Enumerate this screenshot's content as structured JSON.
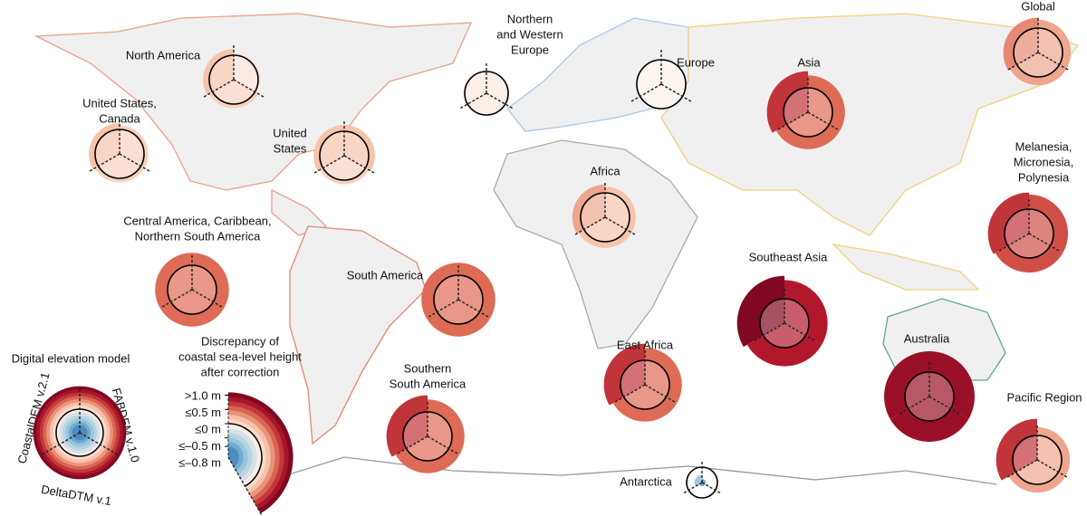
{
  "chart_data": {
    "type": "radial-glyph-map",
    "unit_note": null,
    "series": [
      {
        "name": "CoastalDEM v.2.1"
      },
      {
        "name": "FABDEM v.1.0"
      },
      {
        "name": "DeltaDTM v.1"
      }
    ],
    "legend_title": "Digital elevation model",
    "scale_title": [
      "Discrepancy of",
      "coastal sea-level height",
      "after correction"
    ],
    "scale_ticks": [
      {
        "value": 1.0,
        "label": ">1.0 m"
      },
      {
        "value": 0.5,
        "label": "≤0.5 m"
      },
      {
        "value": 0,
        "label": "≤0 m"
      },
      {
        "value": -0.5,
        "label": "≤–0.5 m"
      },
      {
        "value": -0.8,
        "label": "≤–0.8 m"
      }
    ],
    "regions": [
      {
        "label": [
          "North America"
        ],
        "values": [
          0.3,
          0.1,
          0.2
        ]
      },
      {
        "label": [
          "Northern",
          "and Western",
          "Europe"
        ],
        "values": [
          0.05,
          0.05,
          0.05
        ]
      },
      {
        "label": [
          "Europe"
        ],
        "values": [
          0,
          0,
          0
        ]
      },
      {
        "label": [
          "Asia"
        ],
        "values": [
          0.8,
          0.6,
          0.6
        ]
      },
      {
        "label": [
          "Global"
        ],
        "values": [
          0.5,
          0.4,
          0.4
        ]
      },
      {
        "label": [
          "United States,",
          "Canada"
        ],
        "values": [
          0.3,
          0.2,
          0.2
        ]
      },
      {
        "label": [
          "United",
          "States"
        ],
        "values": [
          0.3,
          0.3,
          0.2
        ]
      },
      {
        "label": [
          "Africa"
        ],
        "values": [
          0.4,
          0.3,
          0.3
        ]
      },
      {
        "label": [
          "Melanesia,",
          "Micronesia,",
          "Polynesia"
        ],
        "values": [
          0.8,
          0.7,
          0.7
        ]
      },
      {
        "label": [
          "Central America, Caribbean,",
          "Northern South America"
        ],
        "values": [
          0.6,
          0.6,
          0.6
        ]
      },
      {
        "label": [
          "South America"
        ],
        "values": [
          0.6,
          0.6,
          0.6
        ]
      },
      {
        "label": [
          "Southeast Asia"
        ],
        "values": [
          1.1,
          0.9,
          0.9
        ]
      },
      {
        "label": [
          "Australia"
        ],
        "values": [
          1.0,
          1.0,
          1.0
        ]
      },
      {
        "label": [
          "East Africa"
        ],
        "values": [
          0.8,
          0.6,
          0.6
        ]
      },
      {
        "label": [
          "Southern",
          "South America"
        ],
        "values": [
          0.8,
          0.6,
          0.6
        ]
      },
      {
        "label": [
          "Pacific Region"
        ],
        "values": [
          0.8,
          0.4,
          0.4
        ]
      },
      {
        "label": [
          "Antarctica"
        ],
        "values": [
          -0.6,
          -0.9,
          -0.9
        ]
      }
    ]
  }
}
